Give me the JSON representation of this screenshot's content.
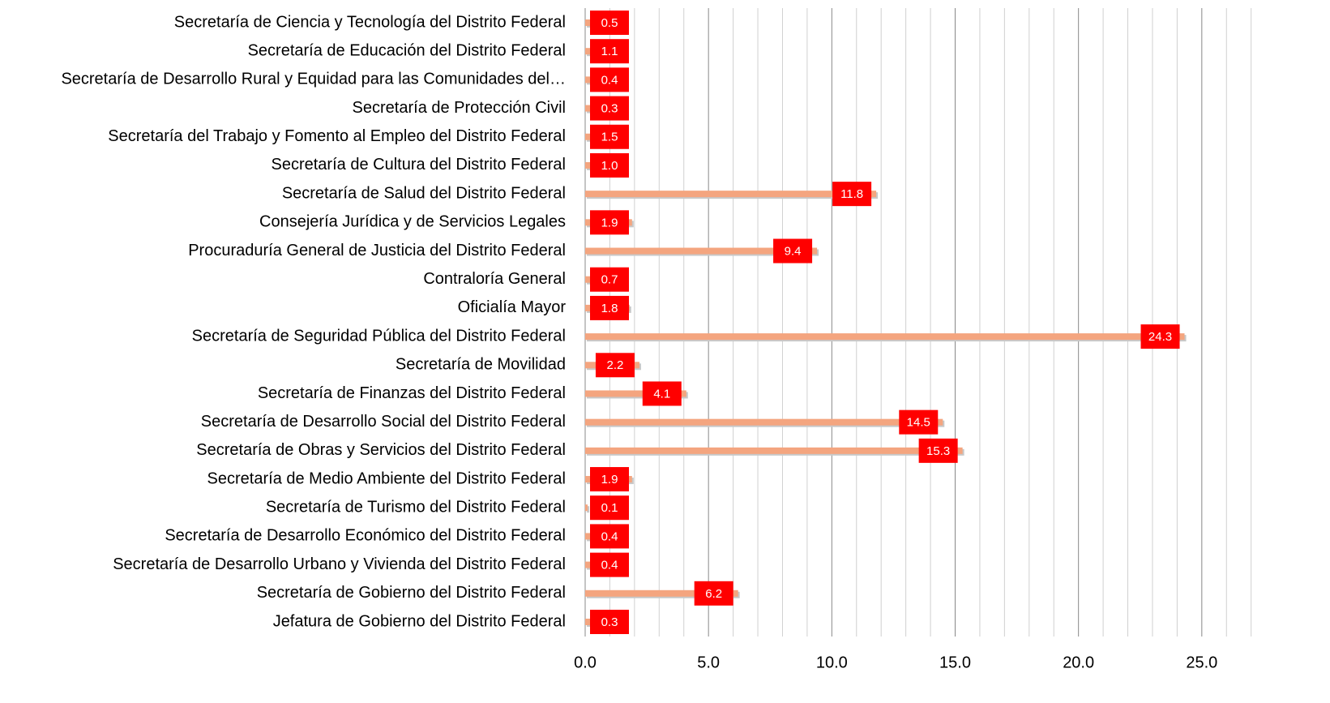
{
  "chart_data": {
    "type": "bar",
    "orientation": "horizontal",
    "categories": [
      "Secretaría de Ciencia y Tecnología del Distrito Federal",
      "Secretaría de Educación del Distrito Federal",
      "Secretaría de Desarrollo Rural y Equidad para las Comunidades del…",
      "Secretaría de Protección Civil",
      "Secretaría del Trabajo y Fomento al Empleo del Distrito Federal",
      "Secretaría de Cultura del Distrito Federal",
      "Secretaría de Salud del Distrito Federal",
      "Consejería Jurídica y de Servicios Legales",
      "Procuraduría General de Justicia del Distrito Federal",
      "Contraloría General",
      "Oficialía Mayor",
      "Secretaría de Seguridad Pública del Distrito Federal",
      "Secretaría de Movilidad",
      "Secretaría de Finanzas del Distrito Federal",
      "Secretaría de Desarrollo Social del Distrito Federal",
      "Secretaría de Obras y Servicios del Distrito Federal",
      "Secretaría de Medio Ambiente del Distrito Federal",
      "Secretaría de Turismo del Distrito Federal",
      "Secretaría de Desarrollo Económico del Distrito Federal",
      "Secretaría de Desarrollo Urbano y Vivienda del Distrito Federal",
      "Secretaría de Gobierno del Distrito Federal",
      "Jefatura de Gobierno del Distrito Federal"
    ],
    "values": [
      0.5,
      1.1,
      0.4,
      0.3,
      1.5,
      1.0,
      11.8,
      1.9,
      9.4,
      0.7,
      1.8,
      24.3,
      2.2,
      4.1,
      14.5,
      15.3,
      1.9,
      0.1,
      0.4,
      0.4,
      6.2,
      0.3
    ],
    "value_labels": [
      "0.5",
      "1.1",
      "0.4",
      "0.3",
      "1.5",
      "1.0",
      "11.8",
      "1.9",
      "9.4",
      "0.7",
      "1.8",
      "24.3",
      "2.2",
      "4.1",
      "14.5",
      "15.3",
      "1.9",
      "0.1",
      "0.4",
      "0.4",
      "6.2",
      "0.3"
    ],
    "color": "#f4a57f",
    "label_color": "#ff0000",
    "xlim": [
      0,
      27.7
    ],
    "xticks": [
      {
        "value": 0,
        "label": "0.0"
      },
      {
        "value": 5,
        "label": "5.0"
      },
      {
        "value": 10,
        "label": "10.0"
      },
      {
        "value": 15,
        "label": "15.0"
      },
      {
        "value": 20,
        "label": "20.0"
      },
      {
        "value": 25,
        "label": "25.0"
      }
    ],
    "xticks_minor": [
      1,
      2,
      3,
      4,
      6,
      7,
      8,
      9,
      11,
      12,
      13,
      14,
      16,
      17,
      18,
      19,
      21,
      22,
      23,
      24,
      26,
      27
    ],
    "grid": true
  }
}
